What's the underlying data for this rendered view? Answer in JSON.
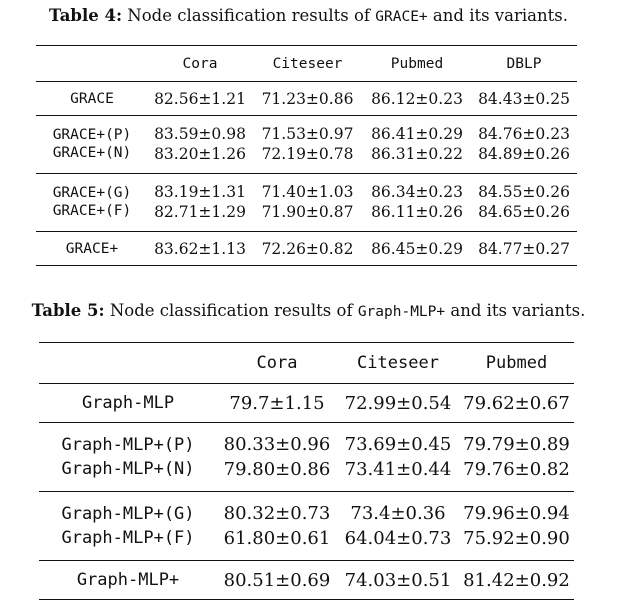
{
  "table4": {
    "caption": {
      "label": "Table 4:",
      "text_before": " Node classification results of ",
      "code": "GRACE+",
      "text_after": " and its variants."
    },
    "headers": [
      "",
      "Cora",
      "Citeseer",
      "Pubmed",
      "DBLP"
    ],
    "rows": [
      [
        "GRACE",
        "82.56±1.21",
        "71.23±0.86",
        "86.12±0.23",
        "84.43±0.25"
      ],
      [
        "GRACE+(P)",
        "83.59±0.98",
        "71.53±0.97",
        "86.41±0.29",
        "84.76±0.23"
      ],
      [
        "GRACE+(N)",
        "83.20±1.26",
        "72.19±0.78",
        "86.31±0.22",
        "84.89±0.26"
      ],
      [
        "GRACE+(G)",
        "83.19±1.31",
        "71.40±1.03",
        "86.34±0.23",
        "84.55±0.26"
      ],
      [
        "GRACE+(F)",
        "82.71±1.29",
        "71.90±0.87",
        "86.11±0.26",
        "84.65±0.26"
      ],
      [
        "GRACE+",
        "83.62±1.13",
        "72.26±0.82",
        "86.45±0.29",
        "84.77±0.27"
      ]
    ]
  },
  "table5": {
    "caption": {
      "label": "Table 5:",
      "text_before": " Node classification results of ",
      "code": "Graph-MLP+",
      "text_after": " and its variants."
    },
    "headers": [
      "",
      "Cora",
      "Citeseer",
      "Pubmed"
    ],
    "rows": [
      [
        "Graph-MLP",
        "79.7±1.15",
        "72.99±0.54",
        "79.62±0.67"
      ],
      [
        "Graph-MLP+(P)",
        "80.33±0.96",
        "73.69±0.45",
        "79.79±0.89"
      ],
      [
        "Graph-MLP+(N)",
        "79.80±0.86",
        "73.41±0.44",
        "79.76±0.82"
      ],
      [
        "Graph-MLP+(G)",
        "80.32±0.73",
        "73.4±0.36",
        "79.96±0.94"
      ],
      [
        "Graph-MLP+(F)",
        "61.80±0.61",
        "64.04±0.73",
        "75.92±0.90"
      ],
      [
        "Graph-MLP+",
        "80.51±0.69",
        "74.03±0.51",
        "81.42±0.92"
      ]
    ]
  }
}
